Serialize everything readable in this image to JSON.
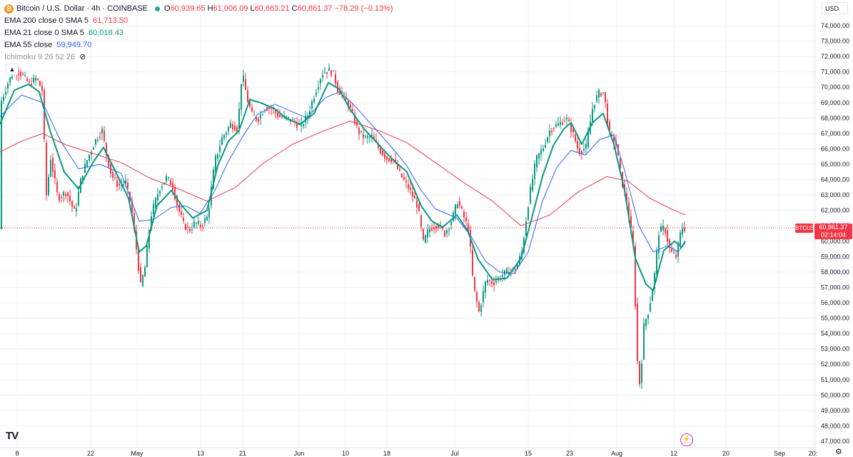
{
  "legend": {
    "symbol": "Bitcoin / U.S. Dollar · 4h · COINBASE",
    "icon": "bitcoin-icon",
    "o_label": "O",
    "o_value": "60,939.65",
    "h_label": "H",
    "h_value": "61,006.09",
    "l_label": "L",
    "l_value": "60,663.21",
    "c_label": "C",
    "c_value": "60,861.37",
    "change": "−78.29 (−0.13%)",
    "ind1_label": "EMA 200 close 0 SMA 5",
    "ind1_value": "61,713.50",
    "ind2_label": "EMA 21 close 0 SMA 5",
    "ind2_value": "60,018.43",
    "ind3_label": "EMA 55 close",
    "ind3_value": "59,949.70",
    "ind4_label": "Ichimoku 9 26 52 26",
    "collapse_icon": "chevron-up-icon",
    "hidden_icon": "eye-crossed-icon"
  },
  "currency": "USD",
  "last_price": {
    "symbol": "BTCUSD",
    "price": "60,861.37",
    "countdown": "02:14:04"
  },
  "branding": {
    "logo": "TV",
    "alert_icon": "lightning-icon",
    "settings_icon": "gear-icon"
  },
  "colors": {
    "up": "#089981",
    "down": "#f23645",
    "ema200": "#f23645",
    "ema21": "#089981",
    "ema55": "#2962ff",
    "grid": "#f0f3fa"
  },
  "chart_data": {
    "type": "candlestick",
    "symbol": "BTCUSD",
    "interval": "4h",
    "y_axis": {
      "min": 47000,
      "max": 75000,
      "step": 1000,
      "tick_labels": [
        "47,000.00",
        "48,000.00",
        "49,000.00",
        "50,000.00",
        "51,000.00",
        "52,000.00",
        "53,000.00",
        "54,000.00",
        "55,000.00",
        "56,000.00",
        "57,000.00",
        "58,000.00",
        "59,000.00",
        "60,000.00",
        "61,000.00",
        "62,000.00",
        "63,000.00",
        "64,000.00",
        "65,000.00",
        "66,000.00",
        "67,000.00",
        "68,000.00",
        "69,000.00",
        "70,000.00",
        "71,000.00",
        "72,000.00",
        "73,000.00",
        "74,000.00"
      ]
    },
    "x_axis": {
      "tick_labels": [
        "8",
        "22",
        "May",
        "13",
        "21",
        "Jun",
        "10",
        "18",
        "Jul",
        "15",
        "23",
        "Aug",
        "12",
        "20",
        "Sep",
        "20:"
      ]
    },
    "price_path": [
      [
        0,
        69000
      ],
      [
        10,
        70300
      ],
      [
        20,
        71200
      ],
      [
        30,
        70800
      ],
      [
        40,
        70200
      ],
      [
        50,
        70600
      ],
      [
        58,
        69800
      ],
      [
        64,
        63000
      ],
      [
        70,
        65400
      ],
      [
        80,
        62800
      ],
      [
        92,
        63200
      ],
      [
        104,
        61800
      ],
      [
        113,
        64200
      ],
      [
        122,
        65400
      ],
      [
        132,
        66500
      ],
      [
        142,
        67200
      ],
      [
        148,
        65600
      ],
      [
        155,
        64300
      ],
      [
        165,
        63600
      ],
      [
        175,
        63800
      ],
      [
        183,
        62200
      ],
      [
        190,
        59500
      ],
      [
        196,
        57100
      ],
      [
        202,
        58300
      ],
      [
        210,
        61600
      ],
      [
        222,
        63400
      ],
      [
        232,
        64100
      ],
      [
        240,
        63700
      ],
      [
        248,
        62200
      ],
      [
        256,
        61100
      ],
      [
        264,
        60700
      ],
      [
        272,
        61200
      ],
      [
        280,
        61000
      ],
      [
        290,
        61600
      ],
      [
        300,
        65200
      ],
      [
        310,
        66700
      ],
      [
        322,
        67600
      ],
      [
        332,
        67300
      ],
      [
        338,
        71000
      ],
      [
        345,
        69300
      ],
      [
        352,
        68200
      ],
      [
        360,
        67900
      ],
      [
        370,
        68700
      ],
      [
        380,
        68600
      ],
      [
        390,
        68100
      ],
      [
        400,
        68000
      ],
      [
        410,
        67800
      ],
      [
        420,
        67400
      ],
      [
        430,
        68200
      ],
      [
        440,
        69600
      ],
      [
        450,
        70900
      ],
      [
        458,
        71100
      ],
      [
        465,
        71000
      ],
      [
        472,
        69900
      ],
      [
        482,
        69300
      ],
      [
        492,
        68400
      ],
      [
        500,
        67200
      ],
      [
        510,
        66700
      ],
      [
        520,
        66800
      ],
      [
        530,
        66000
      ],
      [
        540,
        65400
      ],
      [
        550,
        65300
      ],
      [
        560,
        64300
      ],
      [
        572,
        63400
      ],
      [
        584,
        62300
      ],
      [
        592,
        59900
      ],
      [
        600,
        60800
      ],
      [
        612,
        61100
      ],
      [
        622,
        60500
      ],
      [
        632,
        61400
      ],
      [
        640,
        62600
      ],
      [
        648,
        61700
      ],
      [
        656,
        60600
      ],
      [
        662,
        57100
      ],
      [
        670,
        55400
      ],
      [
        680,
        57500
      ],
      [
        690,
        57300
      ],
      [
        700,
        57700
      ],
      [
        712,
        58100
      ],
      [
        722,
        58200
      ],
      [
        730,
        59300
      ],
      [
        740,
        62800
      ],
      [
        750,
        65300
      ],
      [
        760,
        66100
      ],
      [
        770,
        67300
      ],
      [
        782,
        67600
      ],
      [
        792,
        68000
      ],
      [
        800,
        67200
      ],
      [
        810,
        65800
      ],
      [
        820,
        66100
      ],
      [
        830,
        68900
      ],
      [
        838,
        69600
      ],
      [
        845,
        69700
      ],
      [
        852,
        67000
      ],
      [
        862,
        66300
      ],
      [
        870,
        63900
      ],
      [
        878,
        62300
      ],
      [
        886,
        59700
      ],
      [
        892,
        52200
      ],
      [
        896,
        50300
      ],
      [
        900,
        54300
      ],
      [
        908,
        55600
      ],
      [
        915,
        57400
      ],
      [
        922,
        60600
      ],
      [
        930,
        60900
      ],
      [
        938,
        59300
      ],
      [
        946,
        59000
      ],
      [
        954,
        60900
      ],
      [
        960,
        60800
      ]
    ],
    "ema200": [
      [
        0,
        65800
      ],
      [
        30,
        66500
      ],
      [
        60,
        67000
      ],
      [
        90,
        66300
      ],
      [
        130,
        65700
      ],
      [
        170,
        65100
      ],
      [
        210,
        64100
      ],
      [
        250,
        63400
      ],
      [
        290,
        62600
      ],
      [
        330,
        63500
      ],
      [
        370,
        65100
      ],
      [
        410,
        66300
      ],
      [
        450,
        67100
      ],
      [
        490,
        67800
      ],
      [
        530,
        67200
      ],
      [
        570,
        66400
      ],
      [
        610,
        65100
      ],
      [
        650,
        63800
      ],
      [
        690,
        62600
      ],
      [
        730,
        61000
      ],
      [
        770,
        61700
      ],
      [
        810,
        63200
      ],
      [
        850,
        64200
      ],
      [
        880,
        63900
      ],
      [
        910,
        62800
      ],
      [
        940,
        62100
      ],
      [
        960,
        61700
      ]
    ],
    "ema21": [
      [
        0,
        67600
      ],
      [
        20,
        69800
      ],
      [
        40,
        70200
      ],
      [
        55,
        69700
      ],
      [
        70,
        67200
      ],
      [
        90,
        64500
      ],
      [
        110,
        63400
      ],
      [
        130,
        65100
      ],
      [
        145,
        66100
      ],
      [
        160,
        64700
      ],
      [
        180,
        62800
      ],
      [
        195,
        59300
      ],
      [
        205,
        59700
      ],
      [
        220,
        62300
      ],
      [
        240,
        63300
      ],
      [
        255,
        62300
      ],
      [
        270,
        61500
      ],
      [
        290,
        62000
      ],
      [
        305,
        64900
      ],
      [
        320,
        66500
      ],
      [
        335,
        67200
      ],
      [
        350,
        69200
      ],
      [
        365,
        69000
      ],
      [
        385,
        68600
      ],
      [
        400,
        68000
      ],
      [
        420,
        67600
      ],
      [
        440,
        68300
      ],
      [
        460,
        70300
      ],
      [
        475,
        69900
      ],
      [
        490,
        68600
      ],
      [
        510,
        67300
      ],
      [
        530,
        66300
      ],
      [
        550,
        65300
      ],
      [
        570,
        64500
      ],
      [
        590,
        62300
      ],
      [
        605,
        61300
      ],
      [
        620,
        60900
      ],
      [
        640,
        61700
      ],
      [
        655,
        60700
      ],
      [
        670,
        58800
      ],
      [
        690,
        57500
      ],
      [
        710,
        57600
      ],
      [
        730,
        58900
      ],
      [
        745,
        61500
      ],
      [
        760,
        64200
      ],
      [
        775,
        66200
      ],
      [
        790,
        67300
      ],
      [
        800,
        67700
      ],
      [
        815,
        66300
      ],
      [
        830,
        67700
      ],
      [
        845,
        68300
      ],
      [
        860,
        66300
      ],
      [
        875,
        63300
      ],
      [
        890,
        58900
      ],
      [
        905,
        57200
      ],
      [
        915,
        56800
      ],
      [
        930,
        59400
      ],
      [
        945,
        60000
      ],
      [
        955,
        59600
      ],
      [
        960,
        60000
      ]
    ],
    "ema55": [
      [
        0,
        68100
      ],
      [
        30,
        69500
      ],
      [
        60,
        69000
      ],
      [
        85,
        66500
      ],
      [
        110,
        64700
      ],
      [
        140,
        65000
      ],
      [
        170,
        64400
      ],
      [
        195,
        61300
      ],
      [
        215,
        61400
      ],
      [
        240,
        62200
      ],
      [
        260,
        62300
      ],
      [
        280,
        61800
      ],
      [
        300,
        63200
      ],
      [
        320,
        65200
      ],
      [
        340,
        66800
      ],
      [
        360,
        68200
      ],
      [
        385,
        68900
      ],
      [
        410,
        68400
      ],
      [
        430,
        68000
      ],
      [
        455,
        69300
      ],
      [
        475,
        69700
      ],
      [
        495,
        68900
      ],
      [
        520,
        67600
      ],
      [
        545,
        66300
      ],
      [
        570,
        64900
      ],
      [
        590,
        63300
      ],
      [
        610,
        62100
      ],
      [
        640,
        61500
      ],
      [
        660,
        60300
      ],
      [
        680,
        58700
      ],
      [
        700,
        58000
      ],
      [
        720,
        57900
      ],
      [
        740,
        59300
      ],
      [
        760,
        62600
      ],
      [
        780,
        64800
      ],
      [
        800,
        65900
      ],
      [
        820,
        65600
      ],
      [
        840,
        66600
      ],
      [
        860,
        66900
      ],
      [
        875,
        64600
      ],
      [
        895,
        61000
      ],
      [
        915,
        59300
      ],
      [
        935,
        59700
      ],
      [
        950,
        59300
      ],
      [
        960,
        59900
      ]
    ]
  }
}
